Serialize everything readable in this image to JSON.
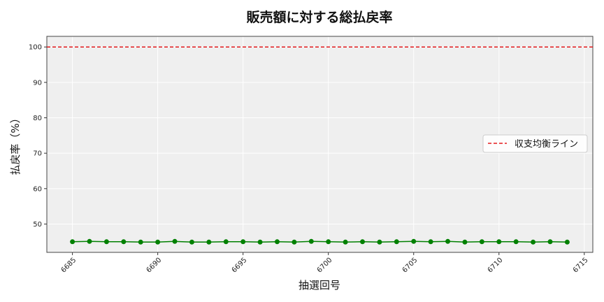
{
  "chart_data": {
    "type": "line",
    "title": "販売額に対する総払戻率",
    "xlabel": "抽選回号",
    "ylabel": "払戻率（%）",
    "xlim": [
      6683.5,
      6715.5
    ],
    "ylim": [
      42,
      103
    ],
    "xticks": [
      6685,
      6690,
      6695,
      6700,
      6705,
      6710,
      6715
    ],
    "yticks": [
      50,
      60,
      70,
      80,
      90,
      100
    ],
    "grid": true,
    "legend_position": "center-right",
    "series": [
      {
        "color": "#008000",
        "x": [
          6685,
          6686,
          6687,
          6688,
          6689,
          6690,
          6691,
          6692,
          6693,
          6694,
          6695,
          6696,
          6697,
          6698,
          6699,
          6700,
          6701,
          6702,
          6703,
          6704,
          6705,
          6706,
          6707,
          6708,
          6709,
          6710,
          6711,
          6712,
          6713,
          6714
        ],
        "y": [
          45.0,
          45.1,
          45.0,
          45.0,
          44.9,
          44.9,
          45.1,
          44.9,
          44.9,
          45.0,
          45.0,
          44.9,
          45.0,
          44.9,
          45.1,
          45.0,
          44.9,
          45.0,
          44.9,
          45.0,
          45.1,
          45.0,
          45.1,
          44.9,
          45.0,
          45.0,
          45.0,
          44.9,
          45.0,
          44.9
        ]
      }
    ],
    "reference_line": {
      "name": "収支均衡ライン",
      "y": 100,
      "color": "#e31a1c",
      "style": "dashed"
    }
  }
}
